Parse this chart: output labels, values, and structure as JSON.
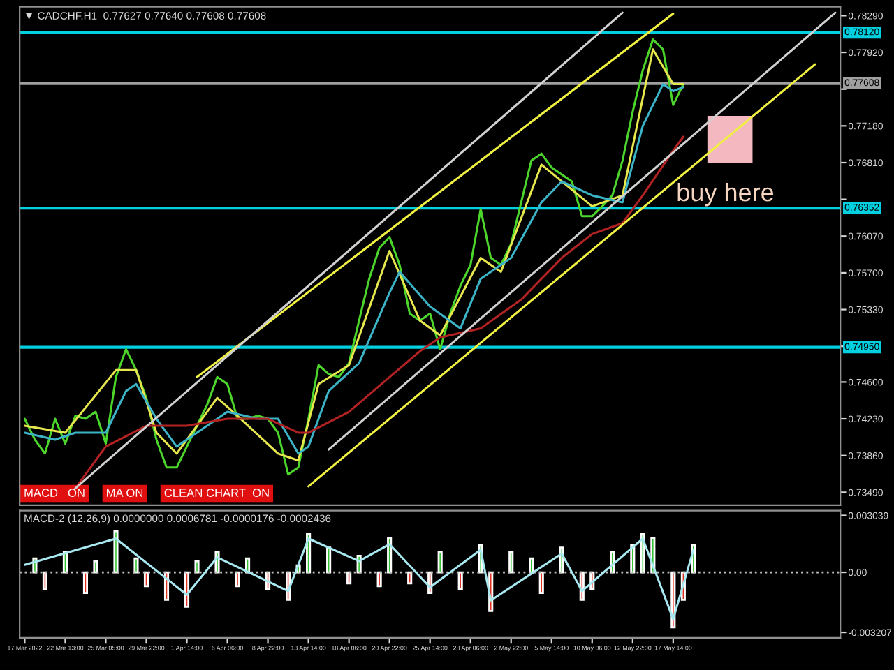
{
  "chart_data": [
    {
      "type": "line",
      "title": "▼ CADCHF,H1  0.77627 0.77640 0.77608 0.77608",
      "categories": [
        null,
        null,
        null,
        null,
        null,
        null,
        null,
        null,
        null,
        null,
        null,
        null,
        null,
        null,
        null,
        null,
        null,
        null,
        null,
        null,
        null,
        null,
        null,
        null,
        null,
        null,
        null,
        null,
        null,
        null,
        null,
        null,
        null,
        null,
        null,
        null,
        null,
        null,
        null,
        null,
        null,
        null,
        null,
        null,
        null,
        null,
        null,
        null,
        null,
        null,
        null,
        null,
        null,
        null,
        null,
        null,
        null,
        null,
        null,
        null,
        null,
        null,
        null,
        null,
        null,
        null,
        null,
        null,
        null,
        null,
        null,
        null,
        null,
        null,
        null,
        null,
        null,
        null,
        null,
        null,
        null
      ],
      "ylim": [
        0.7336,
        0.7838
      ],
      "tick_labels": "y",
      "yticks": [
        {
          "value": 0.7829,
          "label": "0.78290"
        },
        {
          "value": 0.7792,
          "label": "0.77920"
        },
        {
          "value": 0.7755,
          "label": null
        },
        {
          "value": 0.7718,
          "label": "0.77180"
        },
        {
          "value": 0.7681,
          "label": "0.76810"
        },
        {
          "value": 0.7644,
          "label": null
        },
        {
          "value": 0.7607,
          "label": "0.76070"
        },
        {
          "value": 0.757,
          "label": "0.75700"
        },
        {
          "value": 0.7533,
          "label": "0.75330"
        },
        {
          "value": 0.7496,
          "label": null
        },
        {
          "value": 0.746,
          "label": "0.74600"
        },
        {
          "value": 0.7423,
          "label": "0.74230"
        },
        {
          "value": 0.7386,
          "label": "0.73860"
        },
        {
          "value": 0.7349,
          "label": "0.73490"
        }
      ],
      "series": [
        {
          "color": "#4cd62c",
          "values": [
            0.7423,
            0.7402,
            0.7388,
            0.7423,
            0.7398,
            0.7426,
            0.7423,
            0.743,
            0.7398,
            0.7465,
            0.7493,
            0.7472,
            0.7444,
            0.7402,
            0.7374,
            0.7374,
            0.7395,
            0.7416,
            0.7437,
            0.7465,
            0.7458,
            0.7423,
            0.7423,
            0.7426,
            0.7423,
            0.7409,
            0.7367,
            0.7374,
            0.7423,
            0.7477,
            0.7468,
            0.7465,
            0.7479,
            0.7522,
            0.7564,
            0.7595,
            0.7606,
            0.7578,
            0.7529,
            0.7522,
            0.7529,
            0.7493,
            0.7529,
            0.7557,
            0.7578,
            0.7634,
            0.7585,
            0.7578,
            0.7599,
            0.7641,
            0.7683,
            0.769,
            0.7676,
            0.7669,
            0.7662,
            0.7627,
            0.7627,
            0.7637,
            0.7648,
            0.7683,
            0.7732,
            0.7774,
            0.7805,
            0.7795,
            0.7739,
            0.776,
            null,
            null,
            null,
            null,
            null,
            null,
            null,
            null,
            null,
            null,
            null,
            null,
            null,
            null,
            null
          ]
        },
        {
          "color": "#e6e64d",
          "values": [
            0.7416,
            null,
            null,
            null,
            0.7409,
            null,
            null,
            null,
            null,
            0.7472,
            null,
            0.7472,
            null,
            0.7409,
            null,
            0.7388,
            null,
            null,
            null,
            0.7444,
            null,
            0.7426,
            null,
            null,
            null,
            0.7388,
            null,
            0.7381,
            null,
            0.7458,
            null,
            null,
            0.7477,
            null,
            null,
            null,
            0.7592,
            null,
            null,
            0.7522,
            null,
            0.7507,
            null,
            null,
            null,
            0.7585,
            null,
            0.7571,
            null,
            null,
            null,
            0.7679,
            null,
            null,
            null,
            null,
            0.7637,
            null,
            null,
            0.7648,
            null,
            null,
            0.7795,
            null,
            0.776,
            0.776,
            null,
            null,
            null,
            null,
            null,
            null,
            null,
            null,
            null,
            null,
            null,
            null,
            null,
            null,
            null
          ]
        },
        {
          "color": "#3cb4c8",
          "values": [
            0.7409,
            null,
            null,
            0.7402,
            null,
            0.7409,
            null,
            null,
            0.7409,
            null,
            0.7451,
            0.7458,
            null,
            0.7423,
            null,
            0.7395,
            null,
            0.7409,
            null,
            null,
            0.743,
            null,
            null,
            0.7423,
            null,
            0.7423,
            null,
            0.7388,
            0.7395,
            null,
            0.7451,
            null,
            null,
            0.7479,
            null,
            null,
            0.755,
            0.7571,
            null,
            null,
            0.7536,
            null,
            null,
            0.7514,
            null,
            0.7564,
            null,
            null,
            0.7585,
            null,
            null,
            0.7641,
            null,
            0.7662,
            null,
            null,
            0.7648,
            null,
            null,
            0.7641,
            null,
            0.7718,
            null,
            0.776,
            0.7753,
            0.7757,
            null,
            null,
            null,
            null,
            null,
            null,
            null,
            null,
            null,
            null,
            null,
            null,
            null,
            null,
            null
          ]
        },
        {
          "color": "#b22222",
          "values": [
            null,
            null,
            null,
            null,
            null,
            0.7353,
            null,
            null,
            0.7395,
            null,
            null,
            null,
            0.7416,
            null,
            null,
            null,
            0.7416,
            null,
            null,
            null,
            0.7423,
            null,
            null,
            null,
            0.7423,
            null,
            null,
            0.7409,
            0.7409,
            null,
            null,
            null,
            0.743,
            null,
            null,
            null,
            0.7465,
            null,
            null,
            0.7491,
            null,
            0.7505,
            null,
            null,
            null,
            0.7514,
            null,
            null,
            null,
            0.7543,
            null,
            null,
            null,
            0.7585,
            null,
            null,
            0.7609,
            null,
            null,
            0.762,
            null,
            0.7648,
            null,
            null,
            0.7693,
            0.7707,
            null,
            null,
            null,
            null,
            null,
            null,
            null,
            null,
            null,
            null,
            null,
            null,
            null,
            null,
            null
          ]
        },
        {
          "color": "#f0f040",
          "values": [
            null,
            null,
            null,
            null,
            null,
            null,
            null,
            null,
            null,
            null,
            null,
            null,
            null,
            null,
            null,
            null,
            null,
            0.7465,
            null,
            null,
            null,
            null,
            null,
            null,
            null,
            null,
            null,
            null,
            null,
            null,
            null,
            null,
            null,
            null,
            null,
            null,
            null,
            null,
            null,
            null,
            null,
            null,
            null,
            null,
            null,
            null,
            null,
            null,
            null,
            null,
            null,
            null,
            null,
            null,
            null,
            null,
            null,
            null,
            null,
            null,
            null,
            null,
            null,
            null,
            0.7831,
            null,
            null,
            null,
            null,
            null,
            null,
            null,
            null,
            null,
            null,
            null,
            null,
            null,
            null,
            null,
            null
          ]
        },
        {
          "color": "#f0f040",
          "values": [
            null,
            null,
            null,
            null,
            null,
            null,
            null,
            null,
            null,
            null,
            null,
            null,
            null,
            null,
            null,
            null,
            null,
            null,
            null,
            null,
            null,
            null,
            null,
            null,
            null,
            null,
            null,
            null,
            0.7355,
            null,
            null,
            null,
            null,
            null,
            null,
            null,
            null,
            null,
            null,
            null,
            null,
            null,
            null,
            null,
            null,
            null,
            null,
            null,
            null,
            null,
            null,
            null,
            null,
            null,
            null,
            null,
            null,
            null,
            null,
            null,
            null,
            null,
            null,
            null,
            null,
            null,
            null,
            null,
            null,
            null,
            null,
            null,
            null,
            null,
            null,
            null,
            null,
            null,
            0.778,
            null,
            null
          ]
        },
        {
          "color": "#d0d0d0",
          "values": [
            null,
            null,
            null,
            null,
            null,
            0.7353,
            null,
            null,
            null,
            null,
            null,
            null,
            null,
            null,
            null,
            null,
            null,
            null,
            null,
            null,
            null,
            null,
            null,
            null,
            null,
            null,
            null,
            null,
            null,
            null,
            null,
            null,
            null,
            null,
            null,
            null,
            null,
            null,
            null,
            null,
            null,
            null,
            null,
            null,
            null,
            null,
            null,
            null,
            null,
            null,
            null,
            null,
            null,
            null,
            null,
            null,
            null,
            null,
            null,
            0.7832,
            null,
            null,
            null,
            null,
            null,
            null,
            null,
            null,
            null,
            null,
            null,
            null,
            null,
            null,
            null,
            null,
            null,
            null,
            null,
            null,
            null
          ]
        },
        {
          "color": "#d0d0d0",
          "values": [
            null,
            null,
            null,
            null,
            null,
            null,
            null,
            null,
            null,
            null,
            null,
            null,
            null,
            null,
            null,
            null,
            null,
            null,
            null,
            null,
            null,
            null,
            null,
            null,
            null,
            null,
            null,
            null,
            null,
            null,
            0.7392,
            null,
            null,
            null,
            null,
            null,
            null,
            null,
            null,
            null,
            null,
            null,
            null,
            null,
            null,
            null,
            null,
            null,
            null,
            null,
            null,
            null,
            null,
            null,
            null,
            null,
            null,
            null,
            null,
            null,
            null,
            null,
            null,
            null,
            null,
            null,
            null,
            null,
            null,
            null,
            null,
            null,
            null,
            null,
            null,
            null,
            null,
            null,
            null,
            null,
            0.7832
          ]
        }
      ],
      "ref_lines": [
        {
          "axis": "y",
          "value": 0.7812,
          "label": "0.78120",
          "color": "#00d0e0"
        },
        {
          "axis": "y",
          "value": 0.77608,
          "label": "0.77608",
          "color": "#a0a0a0"
        },
        {
          "axis": "y",
          "value": 0.76352,
          "label": "0.76352",
          "color": "#00d0e0"
        },
        {
          "axis": "y",
          "value": 0.7495,
          "label": "0.74950",
          "color": "#00d0e0"
        }
      ],
      "annotations": [
        {
          "text": "buy here",
          "y": 0.7637
        },
        "MACD   ON",
        "MA ON",
        "CLEAN CHART  ON"
      ]
    },
    {
      "type": "bar",
      "subtitle": "MACD-2 (12,26,9) 0.0000000 0.0006781 -0.0000176 -0.0002436",
      "categories": [
        "17 Mar 2022",
        null,
        null,
        null,
        "22 Mar 13:00",
        null,
        null,
        null,
        "25 Mar 05:00",
        null,
        null,
        null,
        "29 Mar 22:00",
        null,
        null,
        null,
        "1 Apr 14:00",
        null,
        null,
        null,
        "6 Apr 06:00",
        null,
        null,
        null,
        "8 Apr 22:00",
        null,
        null,
        null,
        "13 Apr 14:00",
        null,
        null,
        null,
        "18 Apr 06:00",
        null,
        null,
        null,
        "20 Apr 22:00",
        null,
        null,
        null,
        "25 Apr 14:00",
        null,
        null,
        null,
        "28 Apr 06:00",
        null,
        null,
        null,
        "2 May 22:00",
        null,
        null,
        null,
        "5 May 14:00",
        null,
        null,
        null,
        "10 May 06:00",
        null,
        null,
        null,
        "12 May 22:00",
        null,
        null,
        null,
        "17 May 14:00",
        null,
        null,
        null,
        null,
        null,
        null,
        null,
        null,
        null,
        null,
        null,
        null,
        null,
        null,
        null,
        null
      ],
      "ylim": [
        -0.0035,
        0.0033
      ],
      "yticks": [
        {
          "value": 0.003039,
          "label": "0.003039"
        },
        {
          "value": 0,
          "label": "0.00"
        },
        {
          "value": -0.003207,
          "label": "-0.003207"
        }
      ],
      "series": [
        {
          "type": "bar",
          "values": [
            null,
            0.00074,
            -0.00088,
            null,
            0.0011,
            null,
            -0.0011,
            0.00059,
            null,
            0.0022,
            null,
            0.00074,
            -0.00074,
            null,
            -0.00147,
            null,
            -0.00184,
            0.00059,
            null,
            0.0011,
            null,
            -0.00074,
            0.00074,
            null,
            -0.00088,
            null,
            -0.00147,
            0.00037,
            0.00206,
            null,
            0.00132,
            null,
            -0.00059,
            0.00088,
            null,
            -0.00074,
            0.00184,
            null,
            -0.00059,
            null,
            -0.0011,
            0.0011,
            null,
            -0.00088,
            null,
            0.00147,
            -0.00206,
            null,
            0.0011,
            null,
            0.00074,
            -0.0011,
            null,
            0.00132,
            null,
            -0.00147,
            -0.00088,
            null,
            0.0011,
            null,
            0.00147,
            0.00206,
            0.00184,
            null,
            -0.00294,
            -0.00147,
            0.00147,
            null,
            null,
            null,
            null,
            null,
            null,
            null,
            null,
            null,
            null,
            null,
            null,
            null,
            null
          ],
          "colors": [
            null,
            "#30c030",
            "#e03020",
            null,
            "#30c030",
            null,
            "#e03020",
            "#30c030",
            null,
            "#30c030",
            null,
            "#30c030",
            "#e03020",
            null,
            "#e03020",
            null,
            "#e03020",
            "#30c030",
            null,
            "#30c030",
            null,
            "#e03020",
            "#30c030",
            null,
            "#e03020",
            null,
            "#e03020",
            "#30c030",
            "#30c030",
            null,
            "#30c030",
            null,
            "#e03020",
            "#30c030",
            null,
            "#e03020",
            "#30c030",
            null,
            "#e03020",
            null,
            "#e03020",
            "#30c030",
            null,
            "#e03020",
            null,
            "#30c030",
            "#e03020",
            null,
            "#30c030",
            null,
            "#30c030",
            "#e03020",
            null,
            "#30c030",
            null,
            "#e03020",
            "#e03020",
            null,
            "#30c030",
            null,
            "#30c030",
            "#30c030",
            "#30c030",
            null,
            "#e03020",
            "#e03020",
            "#30c030",
            null,
            null,
            null,
            null,
            null,
            null,
            null,
            null,
            null,
            null,
            null,
            null,
            null,
            null
          ]
        },
        {
          "type": "line",
          "color": "#a8e8f0",
          "values": [
            0.0004,
            null,
            null,
            null,
            null,
            null,
            null,
            null,
            null,
            0.0018,
            null,
            null,
            null,
            null,
            null,
            null,
            -0.0012,
            null,
            null,
            0.0008,
            null,
            null,
            null,
            null,
            null,
            null,
            -0.001,
            null,
            0.0018,
            null,
            null,
            null,
            null,
            0.0006,
            null,
            null,
            0.0015,
            null,
            null,
            null,
            -0.0008,
            null,
            null,
            null,
            null,
            0.0012,
            -0.0015,
            null,
            null,
            null,
            null,
            null,
            null,
            0.001,
            null,
            -0.001,
            null,
            null,
            null,
            null,
            null,
            0.0018,
            null,
            null,
            -0.0025,
            null,
            0.0012,
            null,
            null,
            null,
            null,
            null,
            null,
            null,
            null,
            null,
            null,
            null,
            null,
            null,
            null
          ]
        }
      ],
      "ref_lines": [
        {
          "axis": "y",
          "value": 0,
          "color": "#c0c0c0",
          "line_style": "dotted"
        }
      ]
    }
  ]
}
